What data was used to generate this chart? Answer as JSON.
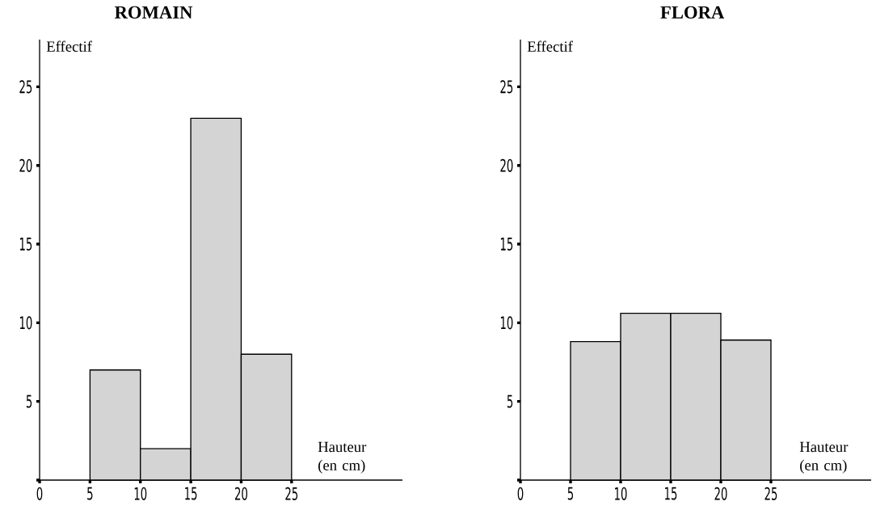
{
  "chart_data": [
    {
      "type": "histogram",
      "title": "ROMAIN",
      "xlabel": "Hauteur (en cm)",
      "ylabel": "Effectif",
      "bins": [
        5,
        10,
        15,
        20,
        25
      ],
      "values": [
        7,
        2,
        23,
        8
      ],
      "color": "#d4d4d4",
      "xlim": [
        0,
        36
      ],
      "ylim": [
        0,
        28
      ],
      "xticks": [
        0,
        5,
        10,
        15,
        20,
        25
      ],
      "yticks": [
        {
          "value": 0,
          "label": null
        },
        5,
        10,
        15,
        20,
        25
      ]
    },
    {
      "type": "histogram",
      "title": "FLORA",
      "xlabel": "Hauteur (en cm)",
      "ylabel": "Effectif",
      "bins": [
        5,
        10,
        15,
        20,
        25
      ],
      "values": [
        8.8,
        10.6,
        10.6,
        8.9
      ],
      "color": "#d4d4d4",
      "xlim": [
        0,
        35
      ],
      "ylim": [
        0,
        28
      ],
      "xticks": [
        0,
        5,
        10,
        15,
        20,
        25
      ],
      "yticks": [
        {
          "value": 0,
          "label": null
        },
        5,
        10,
        15,
        20,
        25
      ]
    }
  ]
}
